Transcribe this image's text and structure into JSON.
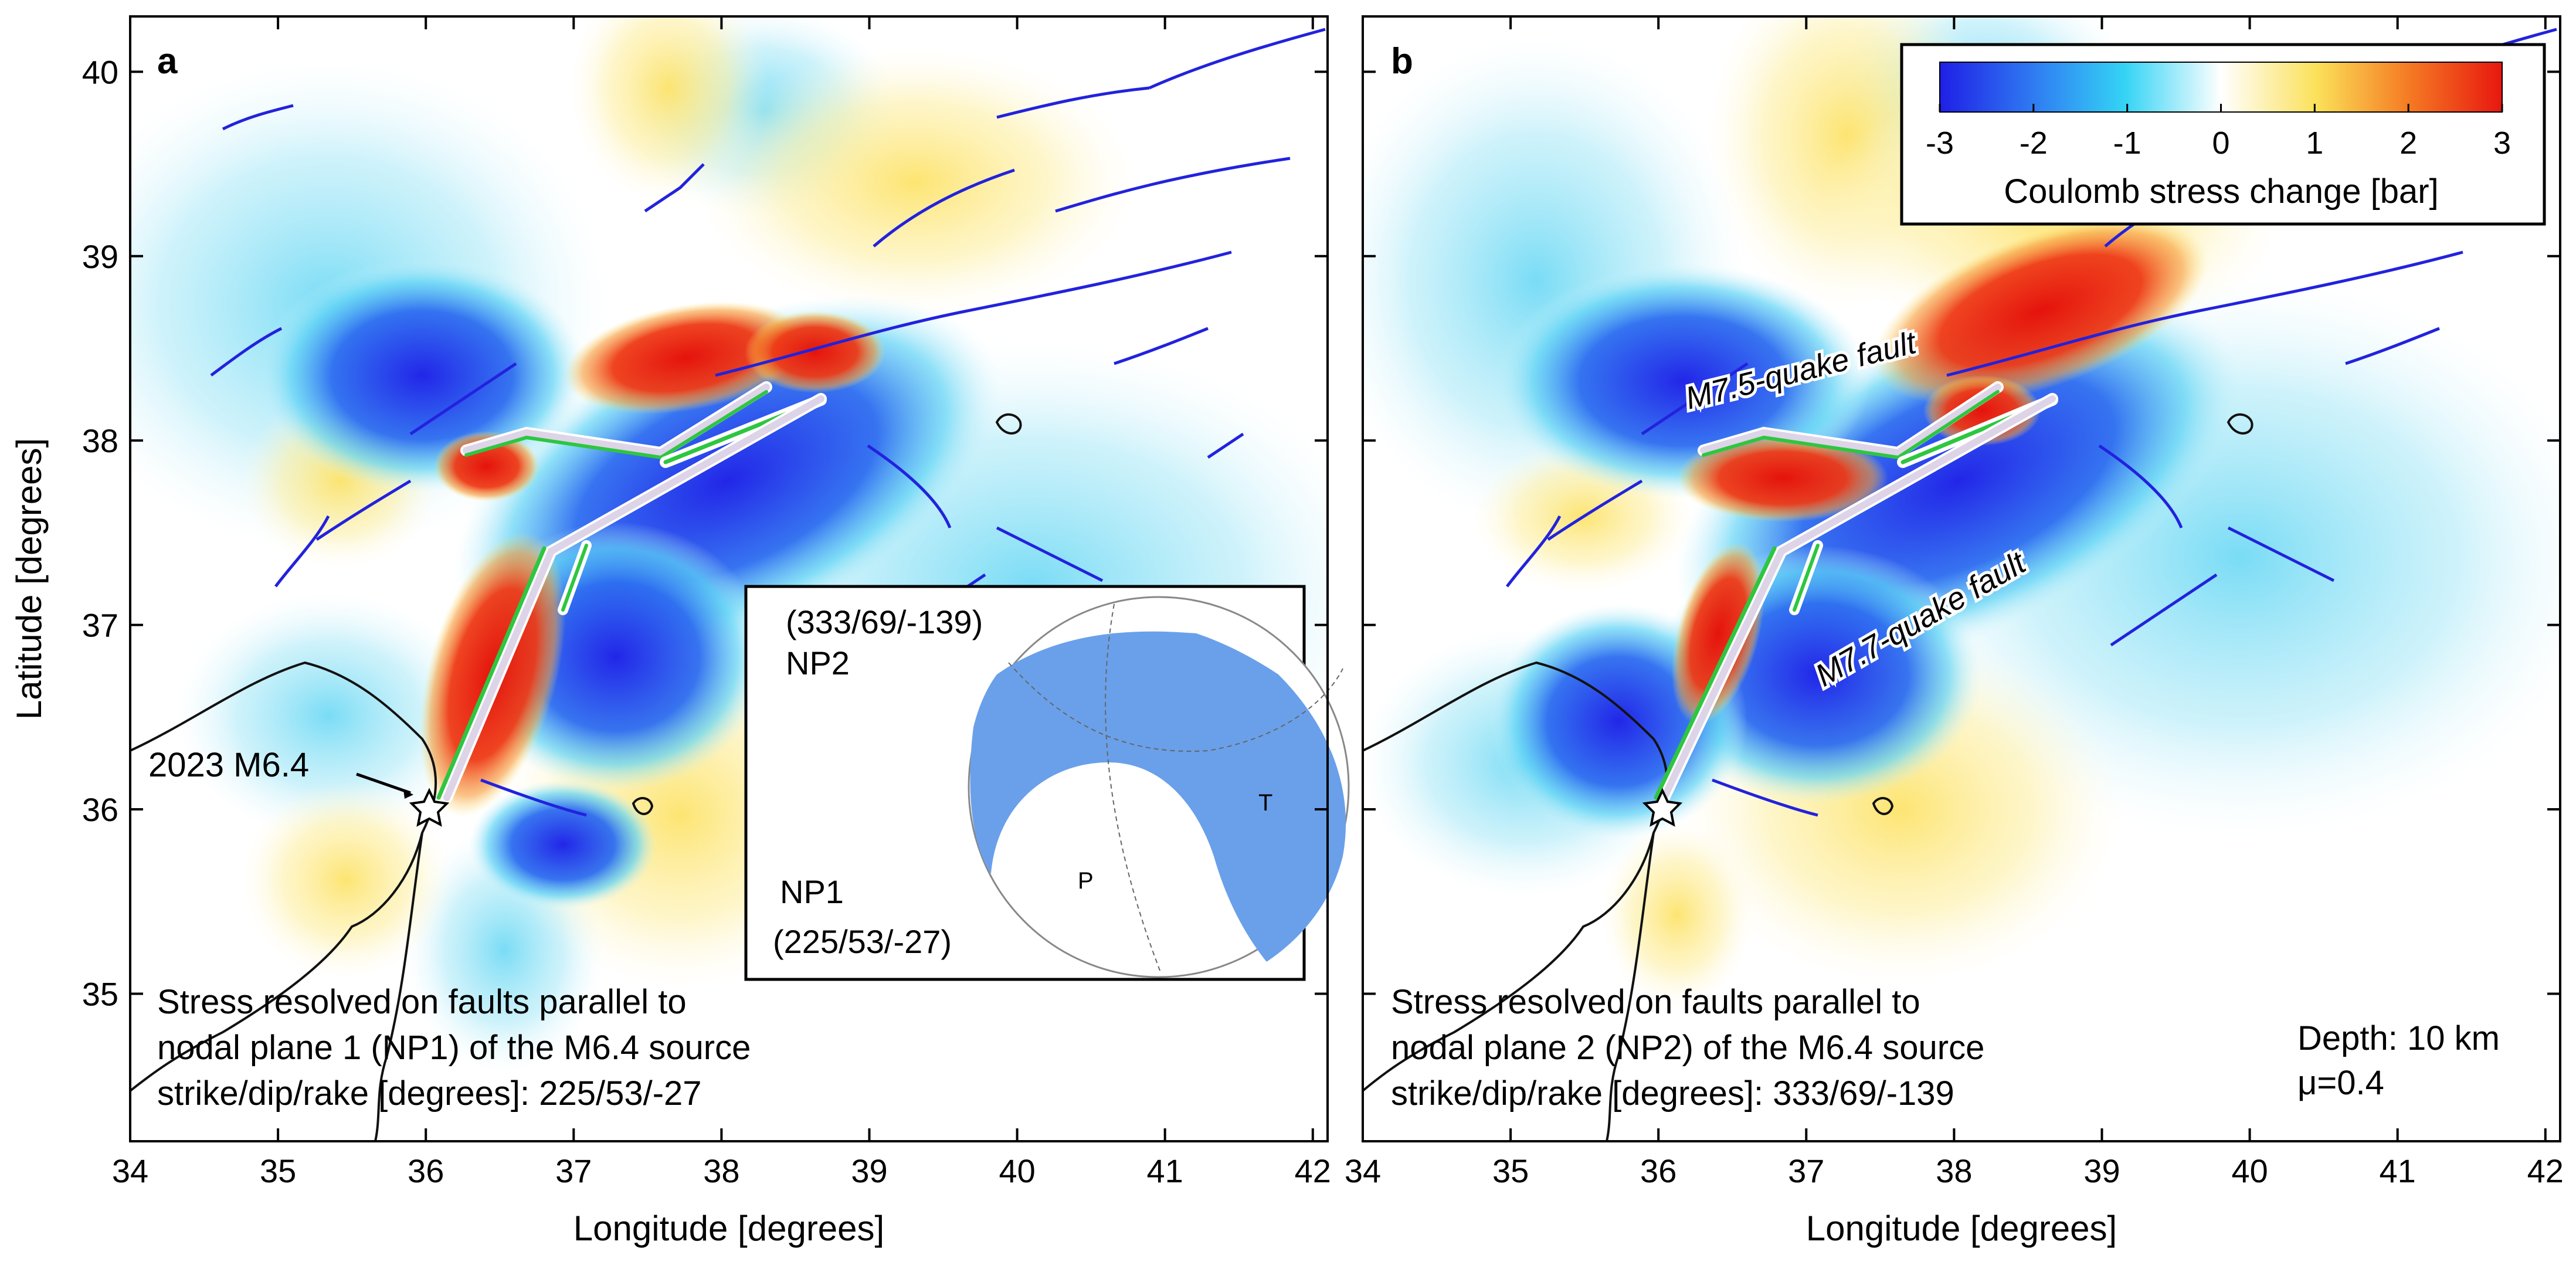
{
  "panels": [
    {
      "letter": "a",
      "notes": [
        "Stress resolved on faults parallel to",
        "nodal plane 1 (NP1) of the M6.4 source",
        "strike/dip/rake [degrees]: 225/53/-27"
      ]
    },
    {
      "letter": "b",
      "notes": [
        "Stress resolved on faults parallel to",
        "nodal plane 2 (NP2) of the M6.4 source",
        "strike/dip/rake [degrees]: 333/69/-139"
      ],
      "depth_label": "Depth: 10 km",
      "mu_label": "μ=0.4"
    }
  ],
  "axes": {
    "xlabel": "Longitude [degrees]",
    "ylabel": "Latitude [degrees]",
    "xticks": [
      "34",
      "35",
      "36",
      "37",
      "38",
      "39",
      "40",
      "41",
      "42"
    ],
    "yticks": [
      "35",
      "36",
      "37",
      "38",
      "39",
      "40"
    ],
    "xlim": [
      34,
      42.1
    ],
    "ylim": [
      34.2,
      40.3
    ]
  },
  "colorbar": {
    "label": "Coulomb stress change [bar]",
    "ticks": [
      "-3",
      "-2",
      "-1",
      "0",
      "1",
      "2",
      "3"
    ],
    "range": [
      -3,
      3
    ],
    "colors": [
      "#1f1fe6",
      "#2f7df2",
      "#35d4f5",
      "#ffffff",
      "#fbe15a",
      "#f57d24",
      "#e8170f"
    ]
  },
  "annotations": {
    "epicenter_label": "2023 M6.4",
    "epicenter_lon": 36.02,
    "epicenter_lat": 36.02,
    "fault_m75_label": "M7.5-quake fault",
    "fault_m77_label": "M7.7-quake fault"
  },
  "beachball": {
    "np2_angles": "(333/69/-139)",
    "np2_label": "NP2",
    "np1_label": "NP1",
    "np1_angles": "(225/53/-27)",
    "p_label": "P",
    "t_label": "T",
    "fill_color": "#6aa0ea"
  }
}
